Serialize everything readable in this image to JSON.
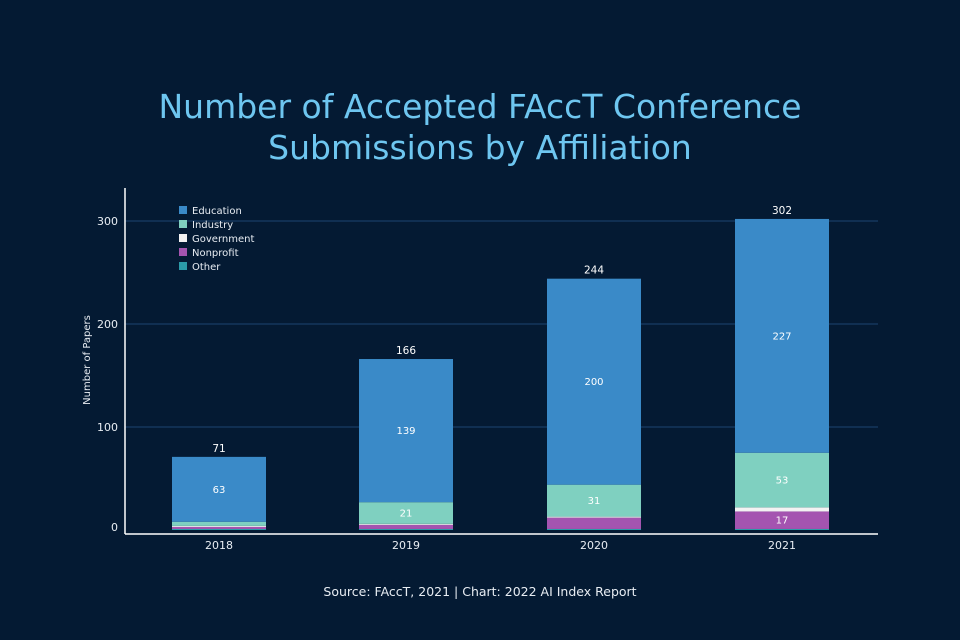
{
  "chart_data": {
    "type": "bar",
    "stacked": true,
    "title_lines": [
      "Number of Accepted FAccT Conference",
      "Submissions by Affiliation"
    ],
    "ylabel": "Number of Papers",
    "xlabel": "",
    "ylim": [
      0,
      330
    ],
    "yticks": [
      0,
      100,
      200,
      300
    ],
    "categories": [
      "2018",
      "2019",
      "2020",
      "2021"
    ],
    "totals": [
      71,
      166,
      244,
      302
    ],
    "legend_position": "top-left",
    "series": [
      {
        "name": "Other",
        "color": "#2b9aa8",
        "values": [
          1,
          1,
          1,
          1
        ],
        "labels": [
          "",
          "",
          "",
          ""
        ]
      },
      {
        "name": "Nonprofit",
        "color": "#a454b0",
        "values": [
          2,
          4,
          11,
          17
        ],
        "labels": [
          "",
          "",
          "",
          "17"
        ]
      },
      {
        "name": "Government",
        "color": "#f2f2f2",
        "values": [
          1,
          1,
          1,
          4
        ],
        "labels": [
          "",
          "",
          "",
          ""
        ]
      },
      {
        "name": "Industry",
        "color": "#7fd0c0",
        "values": [
          4,
          21,
          31,
          53
        ],
        "labels": [
          "",
          "21",
          "31",
          "53"
        ]
      },
      {
        "name": "Education",
        "color": "#3a8ac8",
        "values": [
          63,
          139,
          200,
          227
        ],
        "labels": [
          "63",
          "139",
          "200",
          "227"
        ]
      }
    ],
    "legend_order": [
      "Education",
      "Industry",
      "Government",
      "Nonprofit",
      "Other"
    ],
    "gridlines": true
  },
  "source": "Source: FAccT, 2021 | Chart: 2022 AI Index Report",
  "colors": {
    "background": "#041a33",
    "title": "#6ec6f0",
    "grid": "#1d4470",
    "axis": "#ffffff"
  }
}
